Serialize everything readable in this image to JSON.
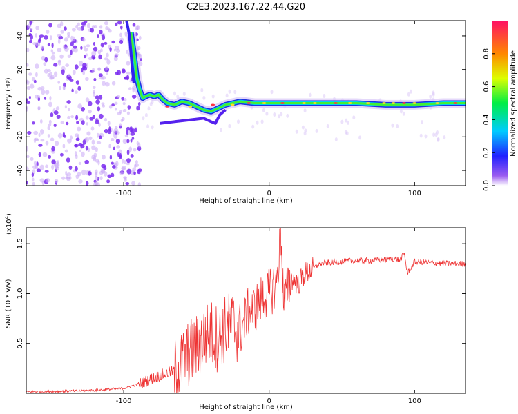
{
  "title": "C2E3.2023.167.22.44.G20",
  "colors": {
    "snr_line": "#ee3333",
    "axis": "#000000"
  },
  "chart_data": [
    {
      "type": "heatmap",
      "xlabel": "Height of straight line (km)",
      "ylabel": "Frequency (Hz)",
      "xlim": [
        -167,
        135
      ],
      "ylim": [
        -49,
        49
      ],
      "xticks": [
        "-100",
        "0",
        "100"
      ],
      "yticks": [
        "-40",
        "-20",
        "0",
        "20",
        "40"
      ],
      "colorbar": {
        "label": "Normalized spectral amplitude",
        "range": [
          0,
          1
        ],
        "ticks": [
          "0.0",
          "0.2",
          "0.4",
          "0.6",
          "0.8"
        ]
      },
      "ridge": [
        [
          -95,
          42
        ],
        [
          -93,
          30
        ],
        [
          -91,
          15
        ],
        [
          -89,
          8
        ],
        [
          -87,
          3
        ],
        [
          -85,
          4
        ],
        [
          -82,
          5
        ],
        [
          -79,
          4
        ],
        [
          -76,
          5
        ],
        [
          -73,
          2
        ],
        [
          -70,
          0
        ],
        [
          -65,
          -1
        ],
        [
          -60,
          1
        ],
        [
          -55,
          0
        ],
        [
          -50,
          -2
        ],
        [
          -45,
          -4
        ],
        [
          -40,
          -5
        ],
        [
          -35,
          -3
        ],
        [
          -30,
          -1
        ],
        [
          -25,
          0
        ],
        [
          -20,
          1
        ],
        [
          -10,
          0
        ],
        [
          0,
          0
        ],
        [
          20,
          0
        ],
        [
          40,
          0
        ],
        [
          60,
          0
        ],
        [
          80,
          -1
        ],
        [
          100,
          -1
        ],
        [
          120,
          0
        ],
        [
          135,
          0
        ]
      ],
      "lower_branch": [
        [
          -75,
          -12
        ],
        [
          -65,
          -11
        ],
        [
          -55,
          -10
        ],
        [
          -45,
          -9
        ],
        [
          -40,
          -11
        ],
        [
          -37,
          -12
        ],
        [
          -34,
          -7
        ],
        [
          -30,
          -4
        ]
      ],
      "noise_region": [
        -167,
        -88
      ]
    },
    {
      "type": "line",
      "xlabel": "Height of straight line (km)",
      "ylabel": "SNR (10 * v/v)",
      "exponent_label": "(x10",
      "exponent_power": "4",
      "exponent_close": ")",
      "xlim": [
        -167,
        135
      ],
      "ylim": [
        0,
        16600
      ],
      "xticks": [
        "-100",
        "0",
        "100"
      ],
      "yticks": [
        "0.5",
        "1.0",
        "1.5"
      ],
      "series": [
        {
          "x": [
            -167,
            -140,
            -120,
            -100,
            -90,
            -80,
            -75,
            -70,
            -65,
            -60,
            -55,
            -50,
            -45,
            -40,
            -35,
            -30,
            -25,
            -20,
            -15,
            -10,
            -5,
            0,
            5,
            7,
            8,
            10,
            15,
            20,
            25,
            30,
            35,
            40,
            50,
            60,
            70,
            80,
            85,
            90,
            93,
            95,
            100,
            110,
            120,
            135
          ],
          "y": [
            150,
            200,
            300,
            500,
            900,
            1500,
            1800,
            2000,
            2300,
            3000,
            4000,
            4500,
            5500,
            6000,
            5500,
            6500,
            7000,
            6000,
            8000,
            8500,
            9500,
            10000,
            11000,
            14000,
            16500,
            9000,
            11500,
            11000,
            12000,
            12500,
            13000,
            13100,
            13200,
            13300,
            13300,
            13400,
            13500,
            13400,
            14000,
            12000,
            13200,
            13100,
            13000,
            13000
          ]
        }
      ]
    }
  ]
}
